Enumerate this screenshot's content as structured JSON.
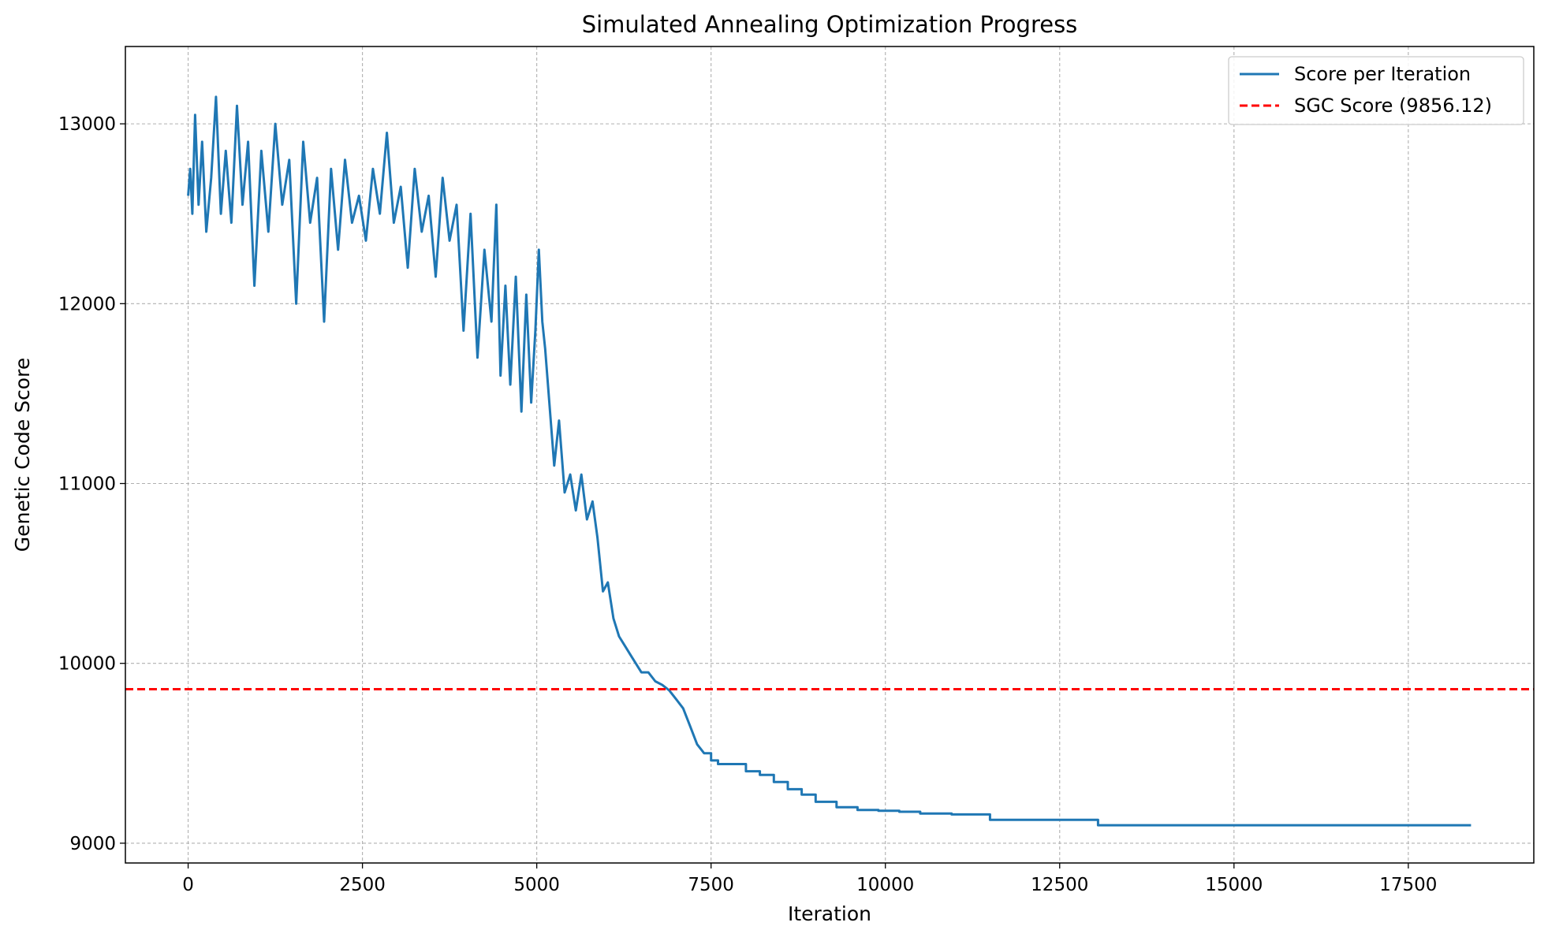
{
  "chart_data": {
    "type": "line",
    "title": "Simulated Annealing Optimization Progress",
    "xlabel": "Iteration",
    "ylabel": "Genetic Code Score",
    "xlim": [
      -900,
      19300
    ],
    "ylim": [
      8890,
      13430
    ],
    "x_ticks": [
      0,
      2500,
      5000,
      7500,
      10000,
      12500,
      15000,
      17500
    ],
    "y_ticks": [
      9000,
      10000,
      11000,
      12000,
      13000
    ],
    "x_tick_labels": [
      "0",
      "2500",
      "5000",
      "7500",
      "10000",
      "12500",
      "15000",
      "17500"
    ],
    "y_tick_labels": [
      "9000",
      "10000",
      "11000",
      "12000",
      "13000"
    ],
    "grid": true,
    "legend_position": "top-right",
    "series": [
      {
        "name": "Score per Iteration",
        "color": "#1f77b4",
        "style": "solid",
        "x": [
          0,
          30,
          60,
          100,
          150,
          200,
          260,
          330,
          400,
          470,
          540,
          620,
          700,
          780,
          860,
          950,
          1050,
          1150,
          1250,
          1350,
          1450,
          1550,
          1650,
          1750,
          1850,
          1950,
          2050,
          2150,
          2250,
          2350,
          2450,
          2550,
          2650,
          2750,
          2850,
          2950,
          3050,
          3150,
          3250,
          3350,
          3450,
          3550,
          3650,
          3750,
          3850,
          3950,
          4050,
          4150,
          4250,
          4350,
          4420,
          4480,
          4550,
          4620,
          4700,
          4780,
          4850,
          4920,
          4980,
          5030,
          5080,
          5120,
          5180,
          5250,
          5320,
          5400,
          5480,
          5560,
          5640,
          5720,
          5800,
          5870,
          5950,
          6020,
          6100,
          6180,
          6260,
          6340,
          6420,
          6500,
          6600,
          6700,
          6800,
          6900,
          7000,
          7100,
          7200,
          7300,
          7400,
          7500,
          7600,
          7800,
          8000,
          8200,
          8400,
          8600,
          8800,
          9000,
          9300,
          9600,
          9900,
          10200,
          10500,
          10950,
          11500,
          12000,
          12500,
          13050,
          13500,
          14000,
          15000,
          16000,
          17000,
          18400
        ],
        "values": [
          12600,
          12750,
          12500,
          13050,
          12550,
          12900,
          12400,
          12700,
          13150,
          12500,
          12850,
          12450,
          13100,
          12550,
          12900,
          12100,
          12850,
          12400,
          13000,
          12550,
          12800,
          12000,
          12900,
          12450,
          12700,
          11900,
          12750,
          12300,
          12800,
          12450,
          12600,
          12350,
          12750,
          12500,
          12950,
          12450,
          12650,
          12200,
          12750,
          12400,
          12600,
          12150,
          12700,
          12350,
          12550,
          11850,
          12500,
          11700,
          12300,
          11900,
          12550,
          11600,
          12100,
          11550,
          12150,
          11400,
          12050,
          11450,
          11850,
          12300,
          11900,
          11750,
          11450,
          11100,
          11350,
          10950,
          11050,
          10850,
          11050,
          10800,
          10900,
          10700,
          10400,
          10450,
          10250,
          10150,
          10100,
          10050,
          10000,
          9950,
          9950,
          9900,
          9880,
          9850,
          9800,
          9750,
          9650,
          9550,
          9500,
          9460,
          9440,
          9440,
          9400,
          9380,
          9340,
          9300,
          9270,
          9230,
          9200,
          9185,
          9180,
          9175,
          9165,
          9160,
          9130,
          9130,
          9130,
          9100,
          9100,
          9100,
          9100,
          9100,
          9100,
          9100
        ]
      },
      {
        "name": "SGC Score (9856.12)",
        "color": "#ff0000",
        "style": "dashed",
        "y": 9856.12
      }
    ]
  }
}
